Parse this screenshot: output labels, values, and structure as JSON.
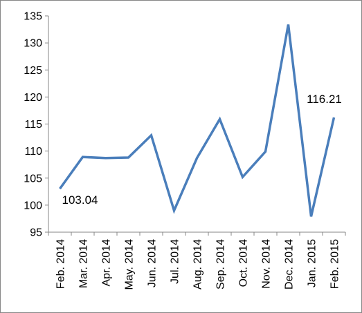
{
  "chart_data": {
    "type": "line",
    "title": "",
    "xlabel": "",
    "ylabel": "",
    "ylim": [
      95,
      135
    ],
    "yticks": [
      95,
      100,
      105,
      110,
      115,
      120,
      125,
      130,
      135
    ],
    "grid": false,
    "legend": "none",
    "categories": [
      "Feb. 2014",
      "Mar. 2014",
      "Apr. 2014",
      "May. 2014",
      "Jun. 2014",
      "Jul. 2014",
      "Aug. 2014",
      "Sep. 2014",
      "Oct. 2014",
      "Nov. 2014",
      "Dec. 2014",
      "Jan. 2015",
      "Feb. 2015"
    ],
    "series": [
      {
        "color": "#4a7ebb",
        "values": [
          103.04,
          108.9,
          108.7,
          108.8,
          112.9,
          99.0,
          108.7,
          115.9,
          105.2,
          109.9,
          133.4,
          97.9,
          116.21
        ]
      }
    ],
    "data_labels": [
      {
        "index": 0,
        "text": "103.04"
      },
      {
        "index": 12,
        "text": "116.21"
      }
    ]
  }
}
